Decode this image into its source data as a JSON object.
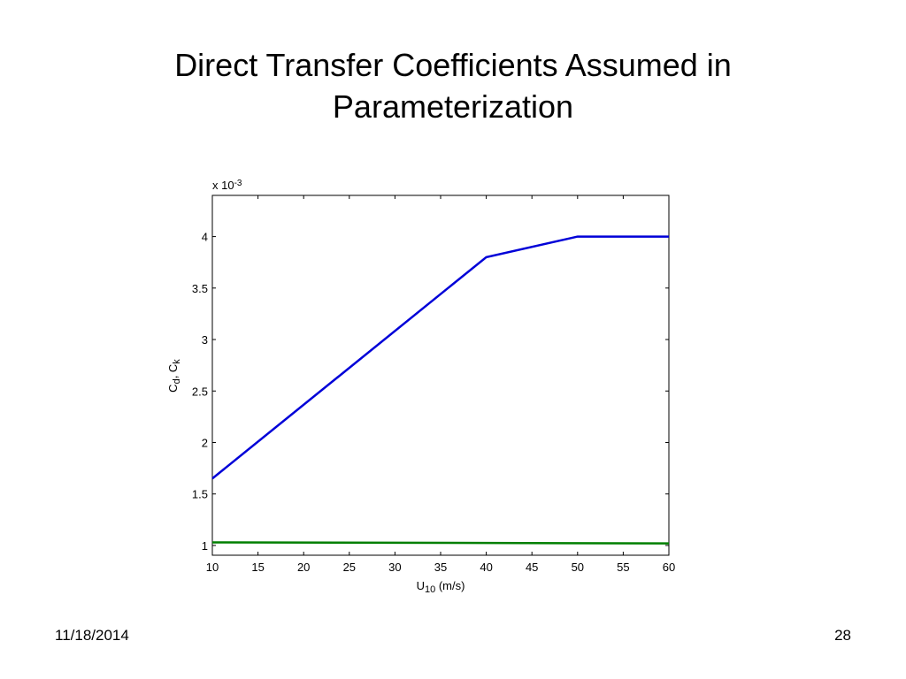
{
  "title_lines": [
    "Direct Transfer Coefficients Assumed in",
    "Parameterization"
  ],
  "chart_data": {
    "type": "line",
    "xlabel": [
      {
        "text": "U"
      },
      {
        "text": "10",
        "sub": true
      },
      {
        "text": " (m/s)"
      }
    ],
    "ylabel": [
      {
        "text": "C"
      },
      {
        "text": "d",
        "sub": true
      },
      {
        "text": ", C"
      },
      {
        "text": "k",
        "sub": true
      }
    ],
    "multiplier": [
      {
        "text": "x 10"
      },
      {
        "text": "-3",
        "sup": true
      }
    ],
    "series": [
      {
        "name": "Cd",
        "color": "#0000d8",
        "x": [
          10,
          40,
          50,
          60
        ],
        "values": [
          1.65,
          3.8,
          4.0,
          4.0
        ]
      },
      {
        "name": "Ck",
        "color": "#007f00",
        "x": [
          10,
          60
        ],
        "values": [
          1.03,
          1.02
        ]
      }
    ],
    "xlim": [
      10,
      60
    ],
    "xticks": [
      10,
      15,
      20,
      25,
      30,
      35,
      40,
      45,
      50,
      55,
      60
    ],
    "ylim": [
      0.905,
      4.4
    ],
    "yticks": [
      1,
      1.5,
      2,
      2.5,
      3,
      3.5,
      4
    ],
    "grid": false
  },
  "footer": {
    "date": "11/18/2014",
    "page": "28"
  }
}
